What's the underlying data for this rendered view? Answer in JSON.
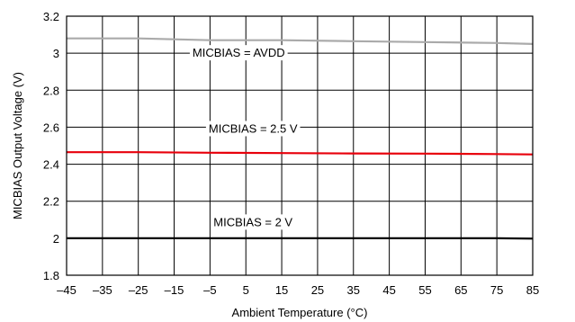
{
  "chart_data": {
    "type": "line",
    "xlabel": "Ambient Temperature (°C)",
    "ylabel": "MICBIAS Output Voltage (V)",
    "xlim": [
      -45,
      85
    ],
    "ylim": [
      1.8,
      3.2
    ],
    "x_ticks": [
      "–45",
      "–35",
      "–25",
      "–15",
      "–5",
      "5",
      "15",
      "25",
      "35",
      "45",
      "55",
      "65",
      "75",
      "85"
    ],
    "y_ticks": [
      "1.8",
      "2",
      "2.2",
      "2.4",
      "2.6",
      "2.8",
      "3",
      "3.2"
    ],
    "grid": true,
    "series": [
      {
        "name": "MICBIAS = AVDD",
        "color": "#aaaaaa",
        "x": [
          -45,
          -25,
          -5,
          15,
          35,
          55,
          75,
          85
        ],
        "y": [
          3.08,
          3.08,
          3.07,
          3.07,
          3.065,
          3.06,
          3.055,
          3.05
        ]
      },
      {
        "name": "MICBIAS = 2.5 V",
        "color": "#e8000b",
        "x": [
          -45,
          -25,
          -5,
          15,
          35,
          55,
          75,
          85
        ],
        "y": [
          2.465,
          2.465,
          2.462,
          2.46,
          2.458,
          2.457,
          2.455,
          2.453
        ]
      },
      {
        "name": "MICBIAS = 2 V",
        "color": "#000000",
        "x": [
          -45,
          -25,
          -5,
          15,
          35,
          55,
          75,
          85
        ],
        "y": [
          2.0,
          2.0,
          2.0,
          2.0,
          2.0,
          2.0,
          2.0,
          1.998
        ]
      }
    ]
  }
}
